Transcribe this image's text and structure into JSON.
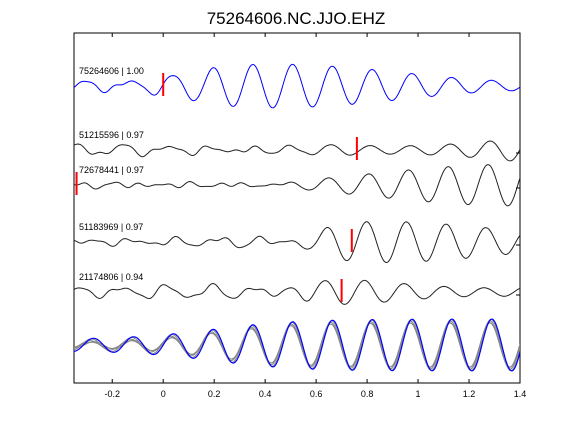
{
  "chart_data": {
    "type": "line",
    "title": "75264606.NC.JJO.EHZ",
    "xlabel": "",
    "ylabel": "",
    "xlim": [
      -0.35,
      1.4
    ],
    "x_ticks": [
      -0.2,
      0,
      0.2,
      0.4,
      0.6,
      0.8,
      1,
      1.2,
      1.4
    ],
    "x_tick_labels": [
      "-0.2",
      "0",
      "0.2",
      "0.4",
      "0.6",
      "0.8",
      "1",
      "1.2",
      "1.4"
    ],
    "grid": false,
    "colors": {
      "master": "#0000ff",
      "trace": "#222222",
      "overlay": "#888888",
      "pick": "#ff0000"
    },
    "series": [
      {
        "label": "75264606 | 1.00",
        "id": "75264606",
        "correlation": 1.0,
        "pick_time": 0.0,
        "color": "#0000ff",
        "onset": 0.05,
        "amplitude": 1.0,
        "phase": 0.0
      },
      {
        "label": "51215596 | 0.97",
        "id": "51215596",
        "correlation": 0.97,
        "pick_time": 0.76,
        "color": "#222222",
        "onset": 0.55,
        "amplitude": 0.95,
        "phase": 0.3
      },
      {
        "label": "72678441 | 0.97",
        "id": "72678441",
        "correlation": 0.97,
        "pick_time": -0.34,
        "color": "#222222",
        "onset": 0.45,
        "amplitude": 0.95,
        "phase": 0.6
      },
      {
        "label": "51183969 | 0.97",
        "id": "51183969",
        "correlation": 0.97,
        "pick_time": 0.74,
        "color": "#222222",
        "onset": 0.55,
        "amplitude": 0.95,
        "phase": 0.9
      },
      {
        "label": "21174806 | 0.94",
        "id": "21174806",
        "correlation": 0.94,
        "pick_time": 0.7,
        "color": "#222222",
        "onset": 0.55,
        "amplitude": 0.95,
        "phase": 1.2
      }
    ],
    "stack": {
      "description_shown": false
    }
  }
}
